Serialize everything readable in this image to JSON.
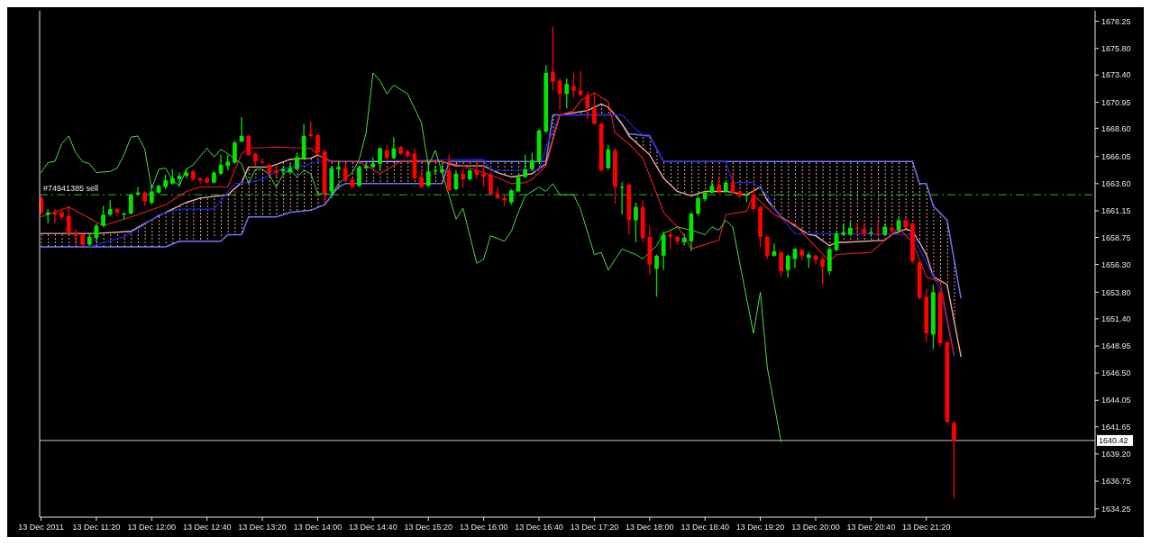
{
  "chart_data": {
    "type": "candlestick",
    "x": [
      "2011-12-13T10:40",
      "2011-12-13T10:45",
      "2011-12-13T10:50",
      "2011-12-13T10:55",
      "2011-12-13T11:00",
      "2011-12-13T11:05",
      "2011-12-13T11:10",
      "2011-12-13T11:15",
      "2011-12-13T11:20",
      "2011-12-13T11:25",
      "2011-12-13T11:30",
      "2011-12-13T11:35",
      "2011-12-13T11:40",
      "2011-12-13T11:45",
      "2011-12-13T11:50",
      "2011-12-13T11:55",
      "2011-12-13T12:00",
      "2011-12-13T12:05",
      "2011-12-13T12:10",
      "2011-12-13T12:15",
      "2011-12-13T12:20",
      "2011-12-13T12:25",
      "2011-12-13T12:30",
      "2011-12-13T12:35",
      "2011-12-13T12:40",
      "2011-12-13T12:45",
      "2011-12-13T12:50",
      "2011-12-13T12:55",
      "2011-12-13T13:00",
      "2011-12-13T13:05",
      "2011-12-13T13:10",
      "2011-12-13T13:15",
      "2011-12-13T13:20",
      "2011-12-13T13:25",
      "2011-12-13T13:30",
      "2011-12-13T13:35",
      "2011-12-13T13:40",
      "2011-12-13T13:45",
      "2011-12-13T13:50",
      "2011-12-13T13:55",
      "2011-12-13T14:00",
      "2011-12-13T14:05",
      "2011-12-13T14:10",
      "2011-12-13T14:15",
      "2011-12-13T14:20",
      "2011-12-13T14:25",
      "2011-12-13T14:30",
      "2011-12-13T14:35",
      "2011-12-13T14:40",
      "2011-12-13T14:45",
      "2011-12-13T14:50",
      "2011-12-13T14:55",
      "2011-12-13T15:00",
      "2011-12-13T15:05",
      "2011-12-13T15:10",
      "2011-12-13T15:15",
      "2011-12-13T15:20",
      "2011-12-13T15:25",
      "2011-12-13T15:30",
      "2011-12-13T15:35",
      "2011-12-13T15:40",
      "2011-12-13T15:45",
      "2011-12-13T15:50",
      "2011-12-13T15:55",
      "2011-12-13T16:00",
      "2011-12-13T16:05",
      "2011-12-13T16:10",
      "2011-12-13T16:15",
      "2011-12-13T16:20",
      "2011-12-13T16:25",
      "2011-12-13T16:30",
      "2011-12-13T16:35",
      "2011-12-13T16:40",
      "2011-12-13T16:45",
      "2011-12-13T16:50",
      "2011-12-13T16:55",
      "2011-12-13T17:00",
      "2011-12-13T17:05",
      "2011-12-13T17:10",
      "2011-12-13T17:15",
      "2011-12-13T17:20",
      "2011-12-13T17:25",
      "2011-12-13T17:30",
      "2011-12-13T17:35",
      "2011-12-13T17:40",
      "2011-12-13T17:45",
      "2011-12-13T17:50",
      "2011-12-13T17:55",
      "2011-12-13T18:00",
      "2011-12-13T18:05",
      "2011-12-13T18:10",
      "2011-12-13T18:15",
      "2011-12-13T18:20",
      "2011-12-13T18:25",
      "2011-12-13T18:30",
      "2011-12-13T18:35",
      "2011-12-13T18:40",
      "2011-12-13T18:45",
      "2011-12-13T18:50",
      "2011-12-13T18:55",
      "2011-12-13T19:00",
      "2011-12-13T19:05",
      "2011-12-13T19:10",
      "2011-12-13T19:15",
      "2011-12-13T19:20",
      "2011-12-13T19:25",
      "2011-12-13T19:30",
      "2011-12-13T19:35",
      "2011-12-13T19:40",
      "2011-12-13T19:45",
      "2011-12-13T19:50",
      "2011-12-13T19:55",
      "2011-12-13T20:00",
      "2011-12-13T20:05",
      "2011-12-13T20:10",
      "2011-12-13T20:15",
      "2011-12-13T20:20",
      "2011-12-13T20:25",
      "2011-12-13T20:30",
      "2011-12-13T20:35",
      "2011-12-13T20:40",
      "2011-12-13T20:45",
      "2011-12-13T20:50",
      "2011-12-13T20:55",
      "2011-12-13T21:00",
      "2011-12-13T21:05",
      "2011-12-13T21:10",
      "2011-12-13T21:15",
      "2011-12-13T21:20",
      "2011-12-13T21:25",
      "2011-12-13T21:30",
      "2011-12-13T21:35",
      "2011-12-13T21:40"
    ],
    "ohlc": [
      [
        1662.3,
        1662.5,
        1660.8,
        1661.0
      ],
      [
        1660.8,
        1661.3,
        1660.0,
        1661.0
      ],
      [
        1661.0,
        1661.3,
        1660.0,
        1660.8
      ],
      [
        1661.0,
        1661.2,
        1660.3,
        1660.6
      ],
      [
        1660.7,
        1661.6,
        1659.0,
        1659.1
      ],
      [
        1659.1,
        1659.5,
        1658.1,
        1658.9
      ],
      [
        1659.0,
        1659.0,
        1657.9,
        1658.1
      ],
      [
        1658.1,
        1659.1,
        1658.0,
        1658.8
      ],
      [
        1658.7,
        1660.0,
        1658.3,
        1659.8
      ],
      [
        1659.8,
        1661.6,
        1659.7,
        1660.8
      ],
      [
        1660.8,
        1662.1,
        1660.7,
        1661.3
      ],
      [
        1661.3,
        1661.4,
        1660.7,
        1661.0
      ],
      [
        1660.8,
        1661.0,
        1660.4,
        1660.9
      ],
      [
        1660.9,
        1662.7,
        1660.8,
        1662.6
      ],
      [
        1662.6,
        1663.3,
        1662.5,
        1662.8
      ],
      [
        1662.8,
        1662.9,
        1661.6,
        1662.0
      ],
      [
        1661.9,
        1663.5,
        1661.7,
        1662.9
      ],
      [
        1662.8,
        1663.5,
        1662.7,
        1663.4
      ],
      [
        1663.3,
        1664.4,
        1663.1,
        1663.9
      ],
      [
        1663.6,
        1664.9,
        1663.5,
        1664.1
      ],
      [
        1664.0,
        1664.6,
        1663.3,
        1664.3
      ],
      [
        1664.3,
        1665.0,
        1664.1,
        1664.6
      ],
      [
        1664.7,
        1664.9,
        1663.9,
        1664.0
      ],
      [
        1664.1,
        1664.2,
        1663.6,
        1663.9
      ],
      [
        1664.1,
        1664.2,
        1663.6,
        1663.7
      ],
      [
        1663.7,
        1664.7,
        1663.6,
        1664.6
      ],
      [
        1664.5,
        1666.2,
        1664.4,
        1665.3
      ],
      [
        1665.2,
        1666.2,
        1664.8,
        1665.6
      ],
      [
        1665.5,
        1667.5,
        1665.4,
        1667.3
      ],
      [
        1667.4,
        1669.6,
        1667.3,
        1667.9
      ],
      [
        1667.9,
        1668.0,
        1666.1,
        1666.2
      ],
      [
        1666.3,
        1666.4,
        1665.2,
        1665.6
      ],
      [
        1665.6,
        1665.9,
        1665.4,
        1665.5
      ],
      [
        1665.3,
        1665.4,
        1664.4,
        1664.6
      ],
      [
        1664.8,
        1665.2,
        1664.2,
        1664.6
      ],
      [
        1664.7,
        1665.2,
        1664.4,
        1664.9
      ],
      [
        1664.6,
        1665.4,
        1664.6,
        1665.0
      ],
      [
        1664.9,
        1666.4,
        1664.9,
        1666.0
      ],
      [
        1665.8,
        1669.0,
        1665.8,
        1667.9
      ],
      [
        1668.1,
        1669.2,
        1667.8,
        1667.9
      ],
      [
        1668.0,
        1668.1,
        1666.3,
        1666.4
      ],
      [
        1666.5,
        1666.7,
        1661.8,
        1662.7
      ],
      [
        1662.9,
        1665.2,
        1662.3,
        1665.0
      ],
      [
        1664.9,
        1665.6,
        1664.1,
        1665.1
      ],
      [
        1665.0,
        1665.4,
        1663.8,
        1663.9
      ],
      [
        1664.0,
        1664.1,
        1663.2,
        1663.3
      ],
      [
        1663.4,
        1665.2,
        1663.3,
        1665.1
      ],
      [
        1665.0,
        1665.5,
        1664.9,
        1665.2
      ],
      [
        1665.1,
        1666.0,
        1665.0,
        1665.4
      ],
      [
        1665.4,
        1666.9,
        1664.8,
        1666.8
      ],
      [
        1666.6,
        1667.1,
        1665.8,
        1665.9
      ],
      [
        1665.9,
        1667.8,
        1665.8,
        1666.8
      ],
      [
        1666.9,
        1667.0,
        1666.2,
        1666.3
      ],
      [
        1666.5,
        1666.7,
        1665.9,
        1666.1
      ],
      [
        1666.3,
        1666.8,
        1664.0,
        1664.1
      ],
      [
        1664.2,
        1664.8,
        1663.2,
        1663.3
      ],
      [
        1663.4,
        1665.2,
        1663.3,
        1664.7
      ],
      [
        1664.7,
        1665.2,
        1664.4,
        1664.8
      ],
      [
        1664.6,
        1665.4,
        1664.5,
        1664.9
      ],
      [
        1664.8,
        1666.2,
        1662.9,
        1663.0
      ],
      [
        1663.1,
        1664.8,
        1663.0,
        1664.5
      ],
      [
        1664.5,
        1665.0,
        1663.3,
        1664.0
      ],
      [
        1664.0,
        1664.9,
        1663.9,
        1664.8
      ],
      [
        1664.8,
        1665.6,
        1664.1,
        1664.4
      ],
      [
        1664.5,
        1665.2,
        1663.3,
        1664.2
      ],
      [
        1664.4,
        1664.6,
        1662.6,
        1662.7
      ],
      [
        1662.7,
        1663.3,
        1662.2,
        1662.3
      ],
      [
        1662.3,
        1662.6,
        1661.6,
        1662.1
      ],
      [
        1661.9,
        1663.1,
        1661.7,
        1663.0
      ],
      [
        1662.9,
        1664.3,
        1662.8,
        1664.2
      ],
      [
        1664.2,
        1666.2,
        1664.1,
        1664.9
      ],
      [
        1664.9,
        1666.4,
        1664.8,
        1665.7
      ],
      [
        1665.6,
        1668.5,
        1665.5,
        1668.4
      ],
      [
        1668.3,
        1674.3,
        1668.2,
        1673.6
      ],
      [
        1673.7,
        1677.8,
        1672.0,
        1672.8
      ],
      [
        1672.9,
        1673.1,
        1670.2,
        1671.7
      ],
      [
        1671.7,
        1673.1,
        1670.4,
        1672.6
      ],
      [
        1672.4,
        1673.6,
        1671.4,
        1672.0
      ],
      [
        1672.0,
        1673.8,
        1671.5,
        1671.6
      ],
      [
        1671.6,
        1671.9,
        1669.4,
        1670.4
      ],
      [
        1670.4,
        1671.8,
        1668.9,
        1669.0
      ],
      [
        1669.0,
        1669.1,
        1664.7,
        1664.8
      ],
      [
        1665.0,
        1667.1,
        1664.9,
        1666.7
      ],
      [
        1666.6,
        1666.8,
        1661.8,
        1663.3
      ],
      [
        1663.2,
        1663.7,
        1660.8,
        1663.3
      ],
      [
        1663.5,
        1663.6,
        1659.0,
        1660.3
      ],
      [
        1660.3,
        1661.9,
        1658.3,
        1661.5
      ],
      [
        1661.5,
        1662.1,
        1658.3,
        1658.7
      ],
      [
        1658.8,
        1659.8,
        1655.4,
        1656.3
      ],
      [
        1655.9,
        1657.2,
        1653.4,
        1657.1
      ],
      [
        1657.1,
        1659.3,
        1655.8,
        1659.0
      ],
      [
        1659.0,
        1659.4,
        1657.7,
        1658.8
      ],
      [
        1658.8,
        1658.9,
        1658.1,
        1658.4
      ],
      [
        1658.3,
        1659.1,
        1658.0,
        1658.7
      ],
      [
        1658.4,
        1661.0,
        1657.5,
        1660.9
      ],
      [
        1660.9,
        1662.5,
        1660.7,
        1662.3
      ],
      [
        1662.2,
        1663.0,
        1662.0,
        1662.8
      ],
      [
        1662.8,
        1663.9,
        1662.7,
        1663.4
      ],
      [
        1663.5,
        1664.2,
        1662.7,
        1662.9
      ],
      [
        1662.9,
        1663.8,
        1662.8,
        1663.7
      ],
      [
        1663.7,
        1664.6,
        1662.7,
        1662.8
      ],
      [
        1662.9,
        1663.0,
        1662.3,
        1662.5
      ],
      [
        1662.5,
        1662.7,
        1661.9,
        1662.6
      ],
      [
        1662.6,
        1663.0,
        1661.2,
        1661.3
      ],
      [
        1661.5,
        1661.6,
        1657.9,
        1658.8
      ],
      [
        1658.8,
        1658.9,
        1656.8,
        1657.1
      ],
      [
        1657.1,
        1658.2,
        1657.0,
        1657.5
      ],
      [
        1657.4,
        1657.5,
        1655.2,
        1655.7
      ],
      [
        1655.8,
        1657.2,
        1655.1,
        1657.1
      ],
      [
        1656.8,
        1657.8,
        1656.0,
        1657.7
      ],
      [
        1657.6,
        1657.7,
        1656.7,
        1657.1
      ],
      [
        1656.9,
        1657.4,
        1656.0,
        1657.2
      ],
      [
        1657.1,
        1657.2,
        1656.3,
        1656.7
      ],
      [
        1656.8,
        1657.0,
        1654.5,
        1656.1
      ],
      [
        1655.7,
        1657.9,
        1655.4,
        1657.7
      ],
      [
        1657.6,
        1659.3,
        1657.5,
        1659.1
      ],
      [
        1659.0,
        1660.0,
        1658.9,
        1659.2
      ],
      [
        1659.0,
        1660.2,
        1658.9,
        1659.6
      ],
      [
        1659.6,
        1660.0,
        1659.1,
        1659.5
      ],
      [
        1659.5,
        1660.0,
        1658.9,
        1659.1
      ],
      [
        1659.1,
        1659.6,
        1658.8,
        1659.2
      ],
      [
        1659.1,
        1660.2,
        1658.9,
        1659.0
      ],
      [
        1659.0,
        1660.0,
        1658.9,
        1659.7
      ],
      [
        1659.6,
        1659.8,
        1659.3,
        1659.4
      ],
      [
        1659.4,
        1660.6,
        1659.3,
        1660.3
      ],
      [
        1660.3,
        1660.6,
        1659.6,
        1659.7
      ],
      [
        1660.0,
        1660.1,
        1656.4,
        1656.6
      ],
      [
        1656.5,
        1656.6,
        1653.1,
        1653.3
      ],
      [
        1653.4,
        1654.1,
        1649.3,
        1650.1
      ],
      [
        1650.0,
        1654.5,
        1648.7,
        1653.8
      ],
      [
        1653.8,
        1653.9,
        1648.9,
        1649.2
      ],
      [
        1649.3,
        1649.4,
        1642.0,
        1642.1
      ],
      [
        1642.0,
        1642.2,
        1635.2,
        1640.4
      ]
    ],
    "colors": [
      "#ff0000",
      "#00e600",
      "#ff0000",
      "#ff0000",
      "#ff0000",
      "#ff0000",
      "#ff0000",
      "#00e600",
      "#00e600",
      "#00e600",
      "#00e600",
      "#ff0000",
      "#00e600",
      "#00e600",
      "#00e600",
      "#ff0000",
      "#00e600",
      "#00e600",
      "#00e600",
      "#00e600",
      "#00e600",
      "#00e600",
      "#ff0000",
      "#ff0000",
      "#ff0000",
      "#00e600",
      "#00e600",
      "#00e600",
      "#00e600",
      "#00e600",
      "#ff0000",
      "#ff0000",
      "#ff0000",
      "#ff0000",
      "#ff0000",
      "#00e600",
      "#00e600",
      "#00e600",
      "#00e600",
      "#ff0000",
      "#ff0000",
      "#ff0000",
      "#00e600",
      "#00e600",
      "#ff0000",
      "#ff0000",
      "#00e600",
      "#00e600",
      "#00e600",
      "#00e600",
      "#ff0000",
      "#00e600",
      "#ff0000",
      "#ff0000",
      "#ff0000",
      "#ff0000",
      "#00e600",
      "#00e600",
      "#00e600",
      "#ff0000",
      "#00e600",
      "#ff0000",
      "#00e600",
      "#ff0000",
      "#ff0000",
      "#ff0000",
      "#ff0000",
      "#ff0000",
      "#00e600",
      "#00e600",
      "#00e600",
      "#00e600",
      "#00e600",
      "#00e600",
      "#ff0000",
      "#ff0000",
      "#00e600",
      "#ff0000",
      "#ff0000",
      "#ff0000",
      "#ff0000",
      "#ff0000",
      "#00e600",
      "#ff0000",
      "#00e600",
      "#ff0000",
      "#00e600",
      "#ff0000",
      "#ff0000",
      "#00e600",
      "#00e600",
      "#ff0000",
      "#ff0000",
      "#00e600",
      "#00e600",
      "#00e600",
      "#00e600",
      "#00e600",
      "#ff0000",
      "#00e600",
      "#ff0000",
      "#ff0000",
      "#00e600",
      "#ff0000",
      "#ff0000",
      "#ff0000",
      "#00e600",
      "#ff0000",
      "#00e600",
      "#00e600",
      "#ff0000",
      "#00e600",
      "#ff0000",
      "#ff0000",
      "#00e600",
      "#00e600",
      "#00e600",
      "#00e600",
      "#ff0000",
      "#ff0000",
      "#00e600",
      "#ff0000",
      "#00e600",
      "#ff0000",
      "#00e600",
      "#ff0000",
      "#ff0000",
      "#ff0000",
      "#ff0000",
      "#00e600",
      "#ff0000",
      "#ff0000",
      "#ff0000"
    ],
    "series": [
      {
        "type": "line",
        "color": "#7474f4",
        "x": [
          "2011-12-13T10:40",
          "2011-12-13T12:10",
          "2011-12-13T12:20",
          "2011-12-13T12:50",
          "2011-12-13T12:55",
          "2011-12-13T13:05",
          "2011-12-13T13:10",
          "2011-12-13T13:30",
          "2011-12-13T13:40",
          "2011-12-13T13:55",
          "2011-12-13T14:05",
          "2011-12-13T14:15",
          "2011-12-13T14:20",
          "2011-12-13T15:30",
          "2011-12-13T15:35",
          "2011-12-13T16:45",
          "2011-12-13T16:50",
          "2011-12-13T17:35",
          "2011-12-13T17:45",
          "2011-12-13T18:00",
          "2011-12-13T18:10",
          "2011-12-13T21:10",
          "2011-12-13T21:15",
          "2011-12-13T21:20",
          "2011-12-13T21:25",
          "2011-12-13T21:35",
          "2011-12-13T21:45"
        ],
        "values": [
          1657.9,
          1657.9,
          1658.4,
          1658.4,
          1659.0,
          1659.0,
          1660.6,
          1660.6,
          1661.0,
          1661.2,
          1661.7,
          1663.3,
          1663.6,
          1663.6,
          1665.6,
          1665.6,
          1669.8,
          1669.8,
          1668.1,
          1667.9,
          1665.6,
          1665.6,
          1663.6,
          1663.6,
          1661.6,
          1660.3,
          1653.3
        ]
      },
      {
        "type": "line",
        "color": "#f4aaa2",
        "x": [
          "2011-12-13T10:40",
          "2011-12-13T11:20",
          "2011-12-13T11:45",
          "2011-12-13T11:55",
          "2011-12-13T12:05",
          "2011-12-13T12:15",
          "2011-12-13T12:25",
          "2011-12-13T12:35",
          "2011-12-13T12:55",
          "2011-12-13T13:05",
          "2011-12-13T13:10",
          "2011-12-13T13:25",
          "2011-12-13T13:40",
          "2011-12-13T13:55",
          "2011-12-13T14:00",
          "2011-12-13T14:10",
          "2011-12-13T14:20",
          "2011-12-13T15:30",
          "2011-12-13T15:35",
          "2011-12-13T15:40",
          "2011-12-13T16:00",
          "2011-12-13T16:10",
          "2011-12-13T16:20",
          "2011-12-13T16:35",
          "2011-12-13T16:45",
          "2011-12-13T16:50",
          "2011-12-13T16:55",
          "2011-12-13T17:15",
          "2011-12-13T17:25",
          "2011-12-13T17:30",
          "2011-12-13T17:35",
          "2011-12-13T17:40",
          "2011-12-13T17:45",
          "2011-12-13T18:00",
          "2011-12-13T18:10",
          "2011-12-13T18:20",
          "2011-12-13T18:30",
          "2011-12-13T18:40",
          "2011-12-13T18:55",
          "2011-12-13T19:10",
          "2011-12-13T19:20",
          "2011-12-13T19:25",
          "2011-12-13T19:35",
          "2011-12-13T19:45",
          "2011-12-13T19:55",
          "2011-12-13T20:00",
          "2011-12-13T20:10",
          "2011-12-13T20:15",
          "2011-12-13T20:20",
          "2011-12-13T20:50",
          "2011-12-13T20:55",
          "2011-12-13T21:05",
          "2011-12-13T21:10",
          "2011-12-13T21:15",
          "2011-12-13T21:20",
          "2011-12-13T21:25",
          "2011-12-13T21:35",
          "2011-12-13T21:45"
        ],
        "values": [
          1659.1,
          1659.1,
          1659.3,
          1660.0,
          1660.7,
          1661.3,
          1661.9,
          1662.3,
          1662.6,
          1663.7,
          1665.1,
          1665.1,
          1665.8,
          1665.9,
          1666.2,
          1665.6,
          1665.6,
          1665.6,
          1665.4,
          1665.2,
          1665.2,
          1664.6,
          1664.2,
          1664.5,
          1665.4,
          1667.6,
          1669.8,
          1670.2,
          1670.8,
          1670.5,
          1669.8,
          1669.0,
          1667.9,
          1666.2,
          1664.1,
          1662.9,
          1662.5,
          1662.9,
          1662.9,
          1662.6,
          1663.3,
          1662.1,
          1660.6,
          1659.8,
          1659.0,
          1658.9,
          1658.0,
          1658.3,
          1658.3,
          1658.5,
          1659.0,
          1659.5,
          1659.3,
          1658.3,
          1657.2,
          1655.2,
          1654.5,
          1648.0
        ],
        "lower": [
          1657.9,
          1657.9,
          1657.9,
          1657.9,
          1657.9,
          1658.2,
          1658.4,
          1658.4,
          1659.0,
          1659.0,
          1660.6,
          1660.6,
          1661.0,
          1661.2,
          1661.5,
          1662.5,
          1663.6,
          1663.6,
          1665.4,
          1665.2,
          1665.2,
          1664.6,
          1664.2,
          1664.5,
          1665.4,
          1667.6,
          1669.8,
          1669.8,
          1669.8,
          1669.8,
          1669.8,
          1669.0,
          1667.9,
          1666.2,
          1664.1,
          1662.9,
          1662.5,
          1662.9,
          1662.9,
          1662.6,
          1663.3,
          1662.1,
          1660.6,
          1659.8,
          1659.0,
          1658.9,
          1658.0,
          1658.3,
          1658.3,
          1658.5,
          1659.0,
          1659.5,
          1659.3,
          1658.3,
          1657.2,
          1655.2,
          1654.5,
          1648.0
        ],
        "upper": [
          1659.1,
          1659.1,
          1659.3,
          1660.0,
          1660.7,
          1661.3,
          1661.9,
          1662.3,
          1662.6,
          1663.7,
          1665.1,
          1665.1,
          1665.8,
          1665.9,
          1666.2,
          1665.6,
          1665.6,
          1665.6,
          1665.6,
          1665.6,
          1665.6,
          1665.6,
          1665.6,
          1665.6,
          1665.6,
          1669.8,
          1669.8,
          1670.2,
          1670.8,
          1670.5,
          1669.8,
          1669.0,
          1668.1,
          1667.9,
          1665.6,
          1665.6,
          1665.6,
          1665.6,
          1665.6,
          1665.6,
          1665.6,
          1665.6,
          1665.6,
          1665.6,
          1665.6,
          1665.6,
          1665.6,
          1665.6,
          1665.6,
          1665.6,
          1665.6,
          1665.6,
          1665.6,
          1663.6,
          1663.6,
          1661.6,
          1660.3,
          1653.3
        ]
      },
      {
        "type": "line",
        "color": "#2424dc",
        "x": [
          "2011-12-13T11:15",
          "2011-12-13T11:40",
          "2011-12-13T11:55",
          "2011-12-13T12:05",
          "2011-12-13T12:20",
          "2011-12-13T12:45",
          "2011-12-13T12:50",
          "2011-12-13T13:00",
          "2011-12-13T13:10",
          "2011-12-13T13:20",
          "2011-12-13T13:35",
          "2011-12-13T13:50",
          "2011-12-13T14:00",
          "2011-12-13T16:00",
          "2011-12-13T16:05",
          "2011-12-13T16:40",
          "2011-12-13T16:45",
          "2011-12-13T16:55",
          "2011-12-13T17:40",
          "2011-12-13T17:50",
          "2011-12-13T17:55",
          "2011-12-13T18:00",
          "2011-12-13T18:10",
          "2011-12-13T18:55",
          "2011-12-13T19:00",
          "2011-12-13T19:15",
          "2011-12-13T19:25",
          "2011-12-13T19:30",
          "2011-12-13T19:45",
          "2011-12-13T21:10",
          "2011-12-13T21:15",
          "2011-12-13T21:25",
          "2011-12-13T21:30",
          "2011-12-13T21:40"
        ],
        "values": [
          1657.9,
          1658.8,
          1659.9,
          1660.8,
          1661.3,
          1661.3,
          1662.1,
          1663.6,
          1663.7,
          1664.0,
          1665.0,
          1665.2,
          1665.6,
          1665.8,
          1664.8,
          1664.8,
          1666.9,
          1669.8,
          1669.8,
          1668.5,
          1668.0,
          1668.0,
          1665.6,
          1665.6,
          1663.7,
          1663.7,
          1662.6,
          1661.3,
          1659.1,
          1659.0,
          1657.7,
          1655.2,
          1654.1,
          1648.0
        ]
      },
      {
        "type": "line",
        "color": "#e81c1c",
        "x": [
          "2011-12-13T10:40",
          "2011-12-13T11:00",
          "2011-12-13T11:25",
          "2011-12-13T11:50",
          "2011-12-13T12:10",
          "2011-12-13T12:25",
          "2011-12-13T12:35",
          "2011-12-13T12:55",
          "2011-12-13T13:05",
          "2011-12-13T13:10",
          "2011-12-13T13:30",
          "2011-12-13T13:55",
          "2011-12-13T14:00",
          "2011-12-13T14:10",
          "2011-12-13T14:30",
          "2011-12-13T14:45",
          "2011-12-13T15:00",
          "2011-12-13T15:30",
          "2011-12-13T15:45",
          "2011-12-13T16:05",
          "2011-12-13T16:20",
          "2011-12-13T16:30",
          "2011-12-13T16:35",
          "2011-12-13T16:45",
          "2011-12-13T16:55",
          "2011-12-13T17:05",
          "2011-12-13T17:10",
          "2011-12-13T17:20",
          "2011-12-13T17:30",
          "2011-12-13T17:35",
          "2011-12-13T17:45",
          "2011-12-13T17:55",
          "2011-12-13T18:05",
          "2011-12-13T18:10",
          "2011-12-13T18:20",
          "2011-12-13T18:25",
          "2011-12-13T18:30",
          "2011-12-13T18:50",
          "2011-12-13T18:55",
          "2011-12-13T19:10",
          "2011-12-13T19:15",
          "2011-12-13T19:30",
          "2011-12-13T19:45",
          "2011-12-13T20:00",
          "2011-12-13T20:10",
          "2011-12-13T20:15",
          "2011-12-13T20:40",
          "2011-12-13T20:50",
          "2011-12-13T21:00",
          "2011-12-13T21:10",
          "2011-12-13T21:20",
          "2011-12-13T21:30",
          "2011-12-13T21:40"
        ],
        "values": [
          1660.6,
          1661.5,
          1659.8,
          1660.8,
          1661.7,
          1662.9,
          1663.3,
          1663.3,
          1666.3,
          1666.8,
          1666.9,
          1666.8,
          1666.2,
          1665.6,
          1665.6,
          1664.5,
          1665.6,
          1665.6,
          1665.2,
          1664.4,
          1663.6,
          1663.7,
          1664.0,
          1665.2,
          1669.8,
          1670.2,
          1671.1,
          1671.8,
          1671.0,
          1668.2,
          1667.2,
          1665.9,
          1662.7,
          1661.0,
          1659.7,
          1658.9,
          1657.7,
          1658.5,
          1660.8,
          1661.1,
          1662.6,
          1660.8,
          1659.9,
          1657.9,
          1656.6,
          1657.2,
          1657.4,
          1658.5,
          1659.6,
          1658.3,
          1655.2,
          1654.7,
          1648.2
        ]
      },
      {
        "type": "line",
        "color": "#4cdc4c",
        "x": [
          "2011-12-13T10:40",
          "2011-12-13T10:45",
          "2011-12-13T10:50",
          "2011-12-13T10:55",
          "2011-12-13T11:00",
          "2011-12-13T11:05",
          "2011-12-13T11:10",
          "2011-12-13T11:15",
          "2011-12-13T11:20",
          "2011-12-13T11:30",
          "2011-12-13T11:35",
          "2011-12-13T11:40",
          "2011-12-13T11:45",
          "2011-12-13T11:50",
          "2011-12-13T11:55",
          "2011-12-13T12:00",
          "2011-12-13T12:05",
          "2011-12-13T12:10",
          "2011-12-13T12:15",
          "2011-12-13T12:20",
          "2011-12-13T12:25",
          "2011-12-13T12:30",
          "2011-12-13T12:40",
          "2011-12-13T12:45",
          "2011-12-13T12:50",
          "2011-12-13T12:55",
          "2011-12-13T13:05",
          "2011-12-13T13:10",
          "2011-12-13T13:15",
          "2011-12-13T13:20",
          "2011-12-13T13:25",
          "2011-12-13T13:30",
          "2011-12-13T13:35",
          "2011-12-13T13:40",
          "2011-12-13T13:45",
          "2011-12-13T13:50",
          "2011-12-13T13:55",
          "2011-12-13T14:00",
          "2011-12-13T14:05",
          "2011-12-13T14:10",
          "2011-12-13T14:15",
          "2011-12-13T14:25",
          "2011-12-13T14:30",
          "2011-12-13T14:35",
          "2011-12-13T14:40",
          "2011-12-13T14:45",
          "2011-12-13T14:50",
          "2011-12-13T14:55",
          "2011-12-13T15:05",
          "2011-12-13T15:15",
          "2011-12-13T15:20",
          "2011-12-13T15:25",
          "2011-12-13T15:30",
          "2011-12-13T15:40",
          "2011-12-13T15:45",
          "2011-12-13T15:55",
          "2011-12-13T16:00",
          "2011-12-13T16:05",
          "2011-12-13T16:15",
          "2011-12-13T16:20",
          "2011-12-13T16:25",
          "2011-12-13T16:30",
          "2011-12-13T16:40",
          "2011-12-13T16:45",
          "2011-12-13T16:50",
          "2011-12-13T16:55",
          "2011-12-13T17:05",
          "2011-12-13T17:10",
          "2011-12-13T17:20",
          "2011-12-13T17:25",
          "2011-12-13T17:30",
          "2011-12-13T17:40",
          "2011-12-13T17:50",
          "2011-12-13T17:55",
          "2011-12-13T18:05",
          "2011-12-13T18:10",
          "2011-12-13T18:20",
          "2011-12-13T18:30",
          "2011-12-13T18:40",
          "2011-12-13T18:45",
          "2011-12-13T18:50",
          "2011-12-13T18:55",
          "2011-12-13T19:00",
          "2011-12-13T19:15",
          "2011-12-13T19:20",
          "2011-12-13T19:25",
          "2011-12-13T19:35"
        ],
        "values": [
          1664.6,
          1665.5,
          1665.6,
          1667.2,
          1667.9,
          1666.4,
          1665.6,
          1665.4,
          1664.6,
          1664.7,
          1665.0,
          1666.2,
          1667.8,
          1667.9,
          1666.7,
          1663.1,
          1664.9,
          1665.0,
          1663.9,
          1663.4,
          1664.9,
          1665.3,
          1666.8,
          1666.0,
          1666.7,
          1666.3,
          1665.4,
          1663.6,
          1664.9,
          1664.9,
          1664.4,
          1663.3,
          1664.4,
          1664.9,
          1664.2,
          1664.8,
          1664.5,
          1662.7,
          1662.7,
          1662.6,
          1663.6,
          1664.6,
          1665.8,
          1668.2,
          1673.6,
          1672.9,
          1671.7,
          1672.5,
          1671.7,
          1669.1,
          1665.2,
          1666.6,
          1664.6,
          1660.4,
          1661.4,
          1656.4,
          1656.8,
          1658.9,
          1658.4,
          1659.3,
          1661.0,
          1662.5,
          1663.3,
          1662.9,
          1663.6,
          1662.6,
          1662.6,
          1661.3,
          1657.2,
          1657.4,
          1655.8,
          1657.7,
          1657.2,
          1656.8,
          1658.0,
          1659.1,
          1659.7,
          1659.4,
          1659.0,
          1659.7,
          1659.4,
          1660.3,
          1659.7,
          1650.1,
          1653.8,
          1647.0,
          1640.3
        ]
      }
    ],
    "xlim": [
      "2011-12-13T10:39",
      "2011-12-13T23:22"
    ],
    "xticks": [
      {
        "value": "2011-12-13T10:40",
        "label": "13 Dec 2011"
      },
      {
        "value": "2011-12-13T11:20",
        "label": "13 Dec 11:20"
      },
      {
        "value": "2011-12-13T12:00",
        "label": "13 Dec 12:00"
      },
      {
        "value": "2011-12-13T12:40",
        "label": "13 Dec 12:40"
      },
      {
        "value": "2011-12-13T13:20",
        "label": "13 Dec 13:20"
      },
      {
        "value": "2011-12-13T14:00",
        "label": "13 Dec 14:00"
      },
      {
        "value": "2011-12-13T14:40",
        "label": "13 Dec 14:40"
      },
      {
        "value": "2011-12-13T15:20",
        "label": "13 Dec 15:20"
      },
      {
        "value": "2011-12-13T16:00",
        "label": "13 Dec 16:00"
      },
      {
        "value": "2011-12-13T16:40",
        "label": "13 Dec 16:40"
      },
      {
        "value": "2011-12-13T17:20",
        "label": "13 Dec 17:20"
      },
      {
        "value": "2011-12-13T18:00",
        "label": "13 Dec 18:00"
      },
      {
        "value": "2011-12-13T18:40",
        "label": "13 Dec 18:40"
      },
      {
        "value": "2011-12-13T19:20",
        "label": "13 Dec 19:20"
      },
      {
        "value": "2011-12-13T20:00",
        "label": "13 Dec 20:00"
      },
      {
        "value": "2011-12-13T20:40",
        "label": "13 Dec 20:40"
      },
      {
        "value": "2011-12-13T21:20",
        "label": "13 Dec 21:20"
      }
    ],
    "ylim": [
      1633.5,
      1679.2
    ],
    "yticks": [
      1678.25,
      {
        "value": 1675.8,
        "label": "1675.80"
      },
      {
        "value": 1673.4,
        "label": "1673.40"
      },
      1670.95,
      {
        "value": 1668.6,
        "label": "1668.60"
      },
      1666.05,
      {
        "value": 1663.6,
        "label": "1663.60"
      },
      1661.15,
      1658.75,
      {
        "value": 1656.3,
        "label": "1656.30"
      },
      {
        "value": 1653.8,
        "label": "1653.80"
      },
      {
        "value": 1651.4,
        "label": "1651.40"
      },
      1648.95,
      {
        "value": 1646.5,
        "label": "1646.50"
      },
      1644.05,
      1641.65,
      {
        "value": 1639.2,
        "label": "1639.20"
      },
      1636.75,
      1634.25
    ],
    "ref_lines": [
      {
        "axis": "y",
        "value": 1662.6,
        "label": "#74941385 sell",
        "color": "#2fb82f",
        "line_style": "dashed"
      },
      {
        "axis": "y",
        "value": 1640.42,
        "label": "1640.42",
        "color": "#c8c8c8"
      }
    ]
  }
}
